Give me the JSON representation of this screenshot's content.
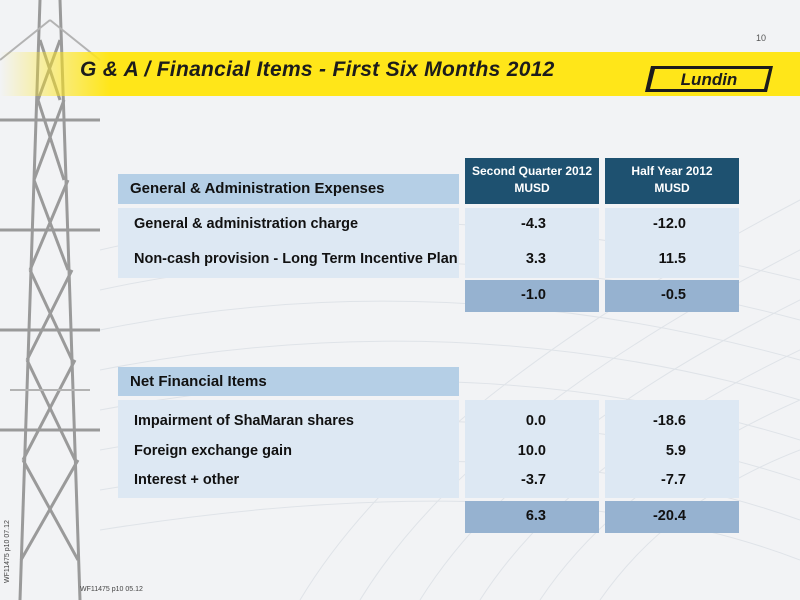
{
  "page_number": "10",
  "title": "G & A / Financial Items - First Six Months 2012",
  "logo_text": "Lundin",
  "columns": {
    "q2": {
      "line1": "Second Quarter 2012",
      "line2": "MUSD"
    },
    "hy": {
      "line1": "Half Year 2012",
      "line2": "MUSD"
    }
  },
  "ga": {
    "header": "General & Administration Expenses",
    "rows": [
      {
        "label": "General & administration charge",
        "q2": "-4.3",
        "hy": "-12.0"
      },
      {
        "label": "Non-cash provision - Long Term Incentive Plan",
        "q2": "3.3",
        "hy": "11.5"
      }
    ],
    "total": {
      "q2": "-1.0",
      "hy": "-0.5"
    }
  },
  "nfi": {
    "header": "Net Financial Items",
    "rows": [
      {
        "label": "Impairment of ShaMaran shares",
        "q2": "0.0",
        "hy": "-18.6"
      },
      {
        "label": "Foreign exchange gain",
        "q2": "10.0",
        "hy": "5.9"
      },
      {
        "label": "Interest + other",
        "q2": "-3.7",
        "hy": "-7.7"
      }
    ],
    "total": {
      "q2": "6.3",
      "hy": "-20.4"
    }
  },
  "footer_code_vertical": "WF11475 p10 07.12",
  "footer_code": "WF11475 p10 05.12",
  "colors": {
    "accent_yellow": "#ffe619",
    "header_dark": "#1e5170",
    "cell_light": "#dde8f3",
    "cell_mid": "#96b2d0",
    "label_bg": "#b5cfe6"
  }
}
